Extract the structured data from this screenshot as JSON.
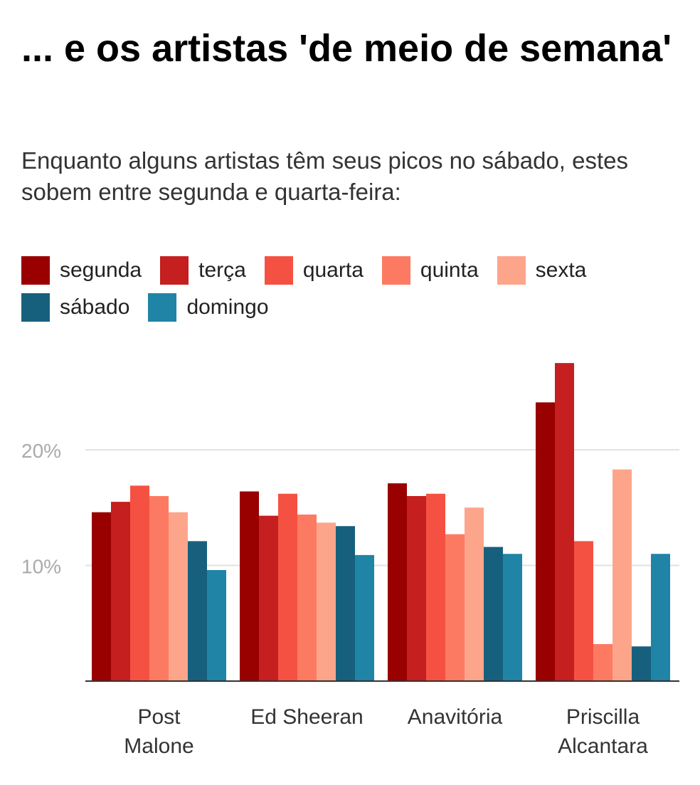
{
  "title": "... e os artistas 'de meio de semana'",
  "subtitle": "Enquanto alguns artistas têm seus picos no sábado, estes sobem entre segunda e quarta-feira:",
  "chart_data": {
    "type": "bar",
    "categories": [
      [
        "Post",
        "Malone"
      ],
      [
        "Ed Sheeran"
      ],
      [
        "Anavitória"
      ],
      [
        "Priscilla",
        "Alcantara"
      ]
    ],
    "series": [
      {
        "name": "segunda",
        "color": "#990000",
        "values": [
          14.6,
          16.4,
          17.1,
          24.1
        ]
      },
      {
        "name": "terça",
        "color": "#c51f1f",
        "values": [
          15.5,
          14.3,
          16.0,
          27.5
        ]
      },
      {
        "name": "quarta",
        "color": "#f55142",
        "values": [
          16.9,
          16.2,
          16.2,
          12.1
        ]
      },
      {
        "name": "quinta",
        "color": "#fd7a62",
        "values": [
          16.0,
          14.4,
          12.7,
          3.2
        ]
      },
      {
        "name": "sexta",
        "color": "#fda58a",
        "values": [
          14.6,
          13.7,
          15.0,
          18.3
        ]
      },
      {
        "name": "sábado",
        "color": "#17607d",
        "values": [
          12.1,
          13.4,
          11.6,
          3.0
        ]
      },
      {
        "name": "domingo",
        "color": "#1f84a6",
        "values": [
          9.6,
          10.9,
          11.0,
          11.0
        ]
      }
    ],
    "yticks": [
      {
        "value": 10,
        "label": "10%"
      },
      {
        "value": 20,
        "label": "20%"
      }
    ],
    "ylim": [
      0,
      30
    ],
    "grid": true,
    "legend": "top"
  }
}
